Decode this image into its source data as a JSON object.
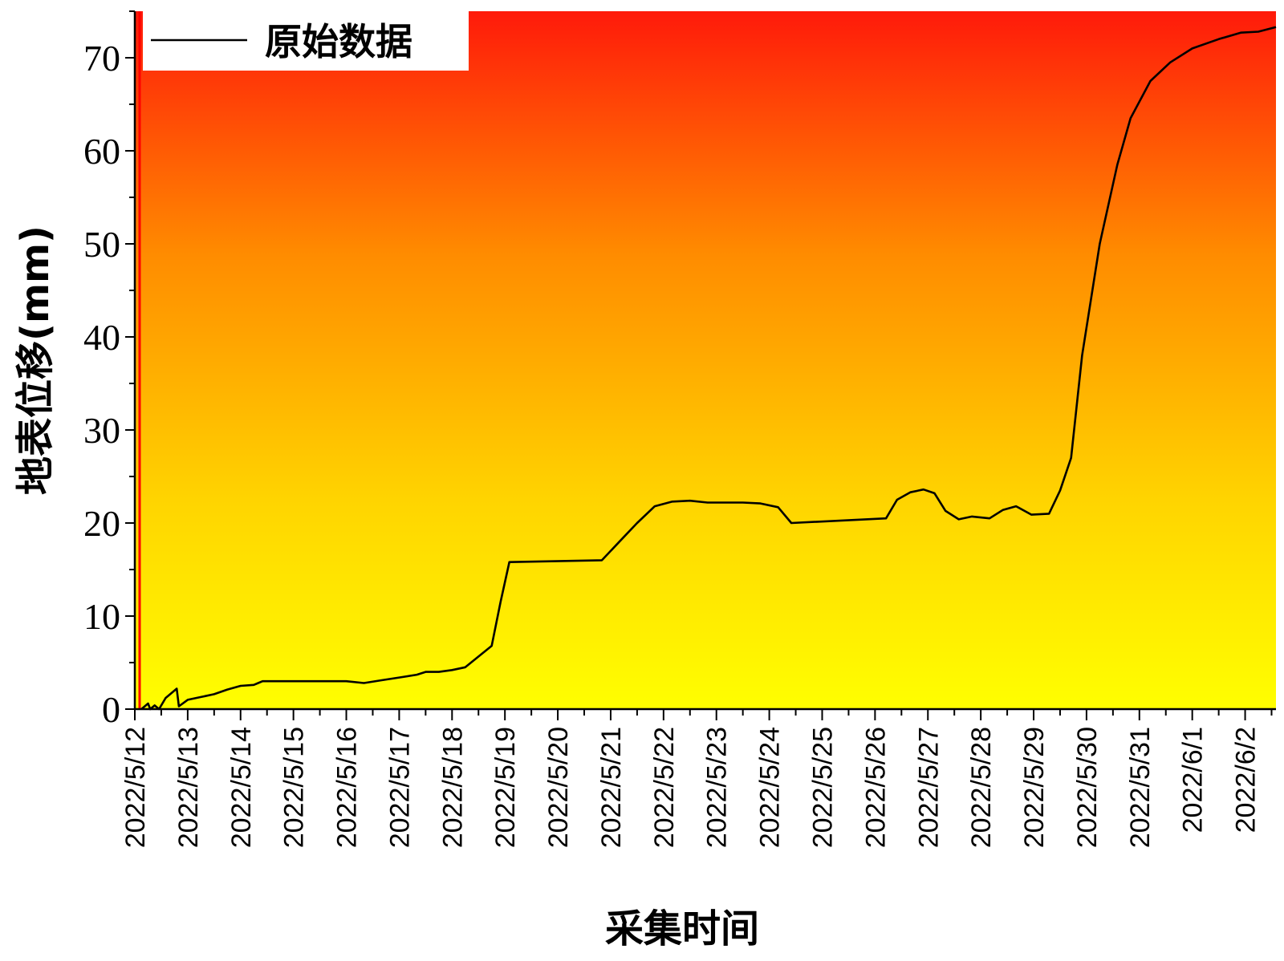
{
  "chart_data": {
    "type": "line",
    "xlabel": "采集时间",
    "ylabel": "地表位移(mm)",
    "ylim": [
      0,
      75
    ],
    "yticks": [
      0,
      10,
      20,
      30,
      40,
      50,
      60,
      70
    ],
    "xlim": [
      "2022/5/12",
      "2022/6/2 14:00"
    ],
    "categories": [
      "2022/5/12",
      "2022/5/13",
      "2022/5/14",
      "2022/5/15",
      "2022/5/16",
      "2022/5/17",
      "2022/5/18",
      "2022/5/19",
      "2022/5/20",
      "2022/5/21",
      "2022/5/22",
      "2022/5/23",
      "2022/5/24",
      "2022/5/25",
      "2022/5/26",
      "2022/5/27",
      "2022/5/28",
      "2022/5/29",
      "2022/5/30",
      "2022/5/31",
      "2022/6/1",
      "2022/6/2"
    ],
    "legend_position": "top-left",
    "background_gradient": [
      "#ff1a0a",
      "#ff8c00",
      "#ffd400",
      "#ffff00"
    ],
    "series": [
      {
        "name": "原始数据",
        "color": "#000000",
        "points": [
          [
            "2022/5/12 03:00",
            0.0
          ],
          [
            "2022/5/12 06:00",
            0.6
          ],
          [
            "2022/5/12 07:00",
            0.0
          ],
          [
            "2022/5/12 09:00",
            0.4
          ],
          [
            "2022/5/12 11:00",
            0.0
          ],
          [
            "2022/5/12 14:00",
            1.2
          ],
          [
            "2022/5/12 19:00",
            2.2
          ],
          [
            "2022/5/12 20:00",
            0.3
          ],
          [
            "2022/5/13 00:00",
            1.0
          ],
          [
            "2022/5/13 06:00",
            1.3
          ],
          [
            "2022/5/13 12:00",
            1.6
          ],
          [
            "2022/5/13 18:00",
            2.1
          ],
          [
            "2022/5/14 00:00",
            2.5
          ],
          [
            "2022/5/14 06:00",
            2.6
          ],
          [
            "2022/5/14 08:00",
            2.8
          ],
          [
            "2022/5/14 10:00",
            3.0
          ],
          [
            "2022/5/16 00:00",
            3.0
          ],
          [
            "2022/5/16 08:00",
            2.8
          ],
          [
            "2022/5/16 16:00",
            3.1
          ],
          [
            "2022/5/17 00:00",
            3.4
          ],
          [
            "2022/5/17 08:00",
            3.7
          ],
          [
            "2022/5/17 12:00",
            4.0
          ],
          [
            "2022/5/17 18:00",
            4.0
          ],
          [
            "2022/5/18 00:00",
            4.2
          ],
          [
            "2022/5/18 06:00",
            4.5
          ],
          [
            "2022/5/18 18:00",
            6.8
          ],
          [
            "2022/5/18 22:00",
            11.5
          ],
          [
            "2022/5/19 02:00",
            15.8
          ],
          [
            "2022/5/20 20:00",
            16.0
          ],
          [
            "2022/5/21 04:00",
            18.0
          ],
          [
            "2022/5/21 12:00",
            20.0
          ],
          [
            "2022/5/21 20:00",
            21.8
          ],
          [
            "2022/5/22 04:00",
            22.3
          ],
          [
            "2022/5/22 12:00",
            22.4
          ],
          [
            "2022/5/22 20:00",
            22.2
          ],
          [
            "2022/5/23 12:00",
            22.2
          ],
          [
            "2022/5/23 20:00",
            22.1
          ],
          [
            "2022/5/24 04:00",
            21.7
          ],
          [
            "2022/5/24 10:00",
            20.0
          ],
          [
            "2022/5/26 05:00",
            20.5
          ],
          [
            "2022/5/26 10:00",
            22.5
          ],
          [
            "2022/5/26 16:00",
            23.3
          ],
          [
            "2022/5/26 22:00",
            23.6
          ],
          [
            "2022/5/27 03:00",
            23.2
          ],
          [
            "2022/5/27 08:00",
            21.3
          ],
          [
            "2022/5/27 14:00",
            20.4
          ],
          [
            "2022/5/27 20:00",
            20.7
          ],
          [
            "2022/5/28 04:00",
            20.5
          ],
          [
            "2022/5/28 10:00",
            21.4
          ],
          [
            "2022/5/28 16:00",
            21.8
          ],
          [
            "2022/5/28 23:00",
            20.9
          ],
          [
            "2022/5/29 07:00",
            21.0
          ],
          [
            "2022/5/29 12:00",
            23.5
          ],
          [
            "2022/5/29 17:00",
            27.0
          ],
          [
            "2022/5/29 22:00",
            38.0
          ],
          [
            "2022/5/30 06:00",
            50.0
          ],
          [
            "2022/5/30 14:00",
            58.5
          ],
          [
            "2022/5/30 20:00",
            63.5
          ],
          [
            "2022/5/31 05:00",
            67.5
          ],
          [
            "2022/5/31 14:00",
            69.5
          ],
          [
            "2022/6/1 00:00",
            71.0
          ],
          [
            "2022/6/1 12:00",
            72.0
          ],
          [
            "2022/6/1 22:00",
            72.7
          ],
          [
            "2022/6/2 06:00",
            72.8
          ],
          [
            "2022/6/2 14:00",
            73.3
          ]
        ]
      }
    ]
  }
}
